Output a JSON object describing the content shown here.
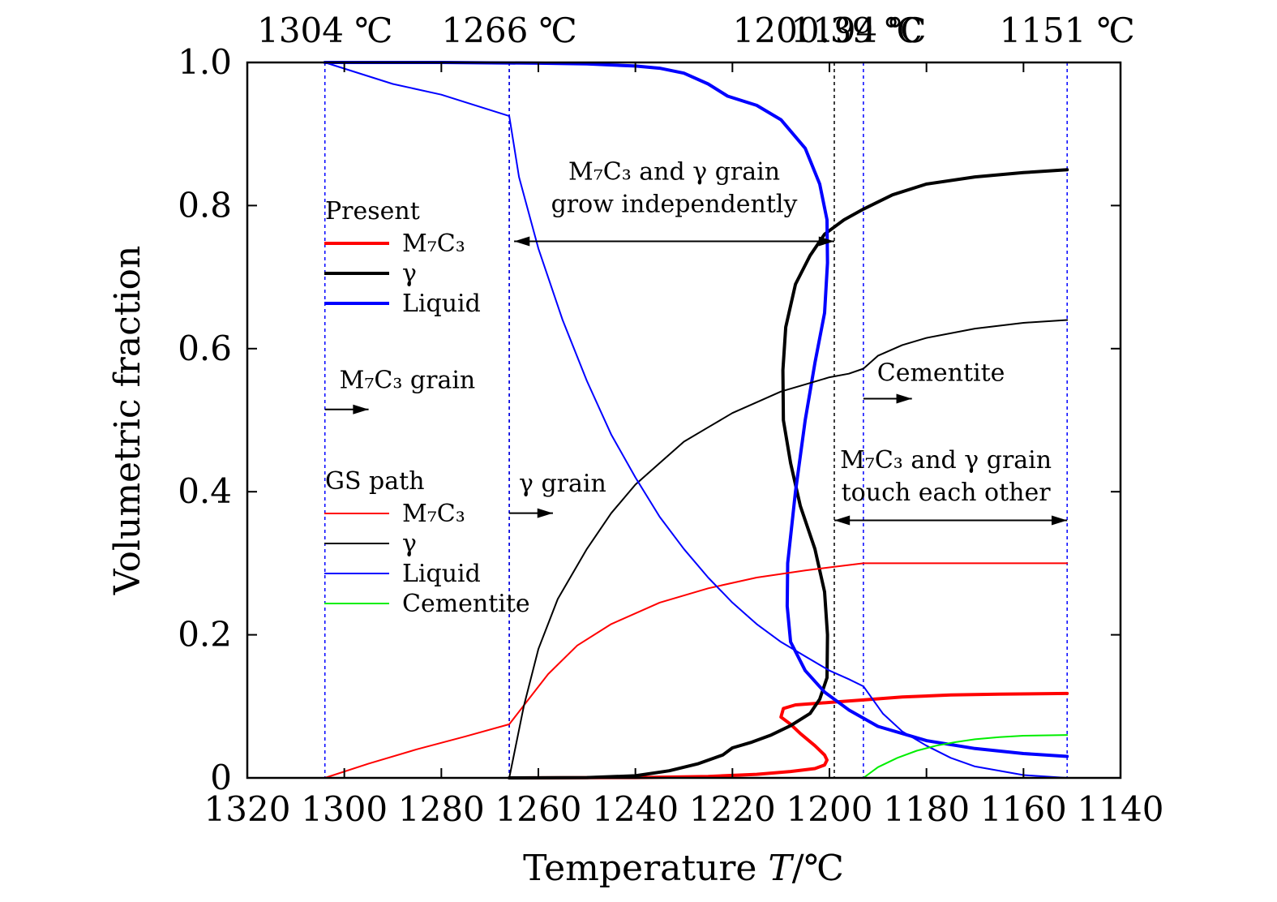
{
  "chart_data": {
    "type": "line",
    "xlabel": "Temperature T/℃",
    "xlabel_parts": {
      "pre": "Temperature ",
      "italic": "T",
      "post": "/℃"
    },
    "ylabel": "Volumetric fraction",
    "xlim": [
      1320,
      1140
    ],
    "ylim": [
      0,
      1.0
    ],
    "x_reversed": true,
    "xticks": [
      1320,
      1300,
      1280,
      1260,
      1240,
      1220,
      1200,
      1180,
      1160,
      1140
    ],
    "xtick_labels": [
      "1320",
      "1300",
      "1280",
      "1260",
      "1240",
      "1220",
      "1200",
      "1180",
      "1160",
      "1140"
    ],
    "yticks": [
      0,
      0.2,
      0.4,
      0.6,
      0.8,
      1.0
    ],
    "ytick_labels": [
      "0",
      "0.2",
      "0.4",
      "0.6",
      "0.8",
      "1.0"
    ],
    "grid": false,
    "colors": {
      "m7c3": "#ff0000",
      "gamma": "#000000",
      "liquid": "#0000ff",
      "cementite": "#00ee00"
    },
    "top_temperatures": [
      {
        "x": 1304,
        "label": "1304 ℃"
      },
      {
        "x": 1266,
        "label": "1266 ℃"
      },
      {
        "x": 1200.39,
        "label": "1200.39 ℃"
      },
      {
        "x": 1194,
        "label": "1194 ℃"
      },
      {
        "x": 1151,
        "label": "1151 ℃"
      }
    ],
    "vertical_lines": [
      {
        "x": 1304,
        "color": "#0000ff"
      },
      {
        "x": 1266,
        "color": "#000000"
      },
      {
        "x": 1266,
        "color": "#0000ff"
      },
      {
        "x": 1199,
        "color": "#000000"
      },
      {
        "x": 1193,
        "color": "#0000ff"
      },
      {
        "x": 1151,
        "color": "#0000ff"
      }
    ],
    "legend_groups": [
      {
        "title": "Present",
        "items": [
          {
            "label": "M₇C₃",
            "color": "#ff0000",
            "width": 4
          },
          {
            "label": "γ",
            "color": "#000000",
            "width": 4
          },
          {
            "label": "Liquid",
            "color": "#0000ff",
            "width": 4
          }
        ]
      },
      {
        "title": "GS path",
        "items": [
          {
            "label": "M₇C₃",
            "color": "#ff0000",
            "width": 2
          },
          {
            "label": "γ",
            "color": "#000000",
            "width": 2
          },
          {
            "label": "Liquid",
            "color": "#0000ff",
            "width": 2
          },
          {
            "label": "Cementite",
            "color": "#00ee00",
            "width": 2
          }
        ]
      }
    ],
    "annotations": [
      {
        "lines": [
          "M₇C₃ and γ grain",
          "grow independently"
        ],
        "x": 1232,
        "y": 0.836,
        "arrow": {
          "type": "double",
          "x1": 1265,
          "x2": 1199,
          "y": 0.75
        }
      },
      {
        "lines": [
          "M₇C₃ grain"
        ],
        "x": 1287,
        "y": 0.545,
        "arrow": {
          "type": "right",
          "x1": 1304,
          "x2": 1295,
          "y": 0.515
        }
      },
      {
        "lines": [
          "γ grain"
        ],
        "x": 1255,
        "y": 0.4,
        "arrow": {
          "type": "right",
          "x1": 1266,
          "x2": 1257,
          "y": 0.37
        }
      },
      {
        "lines": [
          "Cementite"
        ],
        "x": 1177,
        "y": 0.555,
        "arrow": {
          "type": "right",
          "x1": 1193,
          "x2": 1183,
          "y": 0.53
        }
      },
      {
        "lines": [
          "M₇C₃ and γ grain",
          "touch each other"
        ],
        "x": 1176,
        "y": 0.433,
        "arrow": {
          "type": "double",
          "x1": 1199,
          "x2": 1151,
          "y": 0.36
        }
      }
    ],
    "series": [
      {
        "name": "Present M₇C₃",
        "color": "#ff0000",
        "width": 4,
        "x": [
          1266,
          1240,
          1225,
          1215,
          1208,
          1203,
          1201,
          1200.5,
          1201,
          1203,
          1206,
          1208,
          1210,
          1209.5,
          1207,
          1203,
          1199,
          1193,
          1185,
          1175,
          1165,
          1151
        ],
        "y": [
          0,
          0.0005,
          0.002,
          0.005,
          0.009,
          0.013,
          0.018,
          0.025,
          0.032,
          0.045,
          0.062,
          0.075,
          0.085,
          0.097,
          0.102,
          0.104,
          0.106,
          0.109,
          0.113,
          0.116,
          0.117,
          0.118
        ]
      },
      {
        "name": "Present γ",
        "color": "#000000",
        "width": 4,
        "x": [
          1266,
          1250,
          1240,
          1233,
          1227,
          1222,
          1220,
          1216,
          1212,
          1208,
          1204,
          1202,
          1200.5,
          1200.4,
          1201,
          1203,
          1206,
          1208,
          1209.5,
          1209.6,
          1209,
          1207,
          1204,
          1201,
          1197,
          1193,
          1187,
          1180,
          1170,
          1160,
          1151
        ],
        "y": [
          0,
          0.0005,
          0.003,
          0.01,
          0.02,
          0.032,
          0.042,
          0.05,
          0.06,
          0.073,
          0.09,
          0.11,
          0.14,
          0.2,
          0.26,
          0.32,
          0.38,
          0.44,
          0.5,
          0.57,
          0.63,
          0.69,
          0.73,
          0.76,
          0.78,
          0.795,
          0.815,
          0.83,
          0.84,
          0.846,
          0.85
        ]
      },
      {
        "name": "Present Liquid",
        "color": "#0000ff",
        "width": 4,
        "x": [
          1304,
          1280,
          1260,
          1250,
          1240,
          1235,
          1230,
          1225,
          1221,
          1215,
          1210,
          1205,
          1202,
          1200.5,
          1200.4,
          1201,
          1203,
          1205,
          1207,
          1208.6,
          1208.7,
          1208,
          1205,
          1201,
          1196,
          1190,
          1180,
          1170,
          1160,
          1151
        ],
        "y": [
          1.0,
          1.0,
          0.999,
          0.998,
          0.995,
          0.992,
          0.985,
          0.97,
          0.953,
          0.94,
          0.92,
          0.88,
          0.83,
          0.78,
          0.72,
          0.65,
          0.58,
          0.5,
          0.4,
          0.3,
          0.24,
          0.19,
          0.15,
          0.12,
          0.095,
          0.072,
          0.052,
          0.041,
          0.034,
          0.03
        ]
      },
      {
        "name": "GS path M₇C₃",
        "color": "#ff0000",
        "width": 2,
        "x": [
          1304,
          1295,
          1285,
          1275,
          1266,
          1262,
          1258,
          1252,
          1245,
          1235,
          1225,
          1215,
          1205,
          1199,
          1193,
          1180,
          1165,
          1151
        ],
        "y": [
          0,
          0.02,
          0.04,
          0.058,
          0.075,
          0.11,
          0.145,
          0.185,
          0.215,
          0.245,
          0.265,
          0.28,
          0.29,
          0.295,
          0.3,
          0.3,
          0.3,
          0.3
        ]
      },
      {
        "name": "GS path γ",
        "color": "#000000",
        "width": 2,
        "x": [
          1266,
          1263,
          1260,
          1256,
          1250,
          1245,
          1240,
          1235,
          1230,
          1225,
          1220,
          1215,
          1210,
          1205,
          1200,
          1196,
          1193,
          1190,
          1185,
          1180,
          1170,
          1160,
          1151
        ],
        "y": [
          0,
          0.1,
          0.18,
          0.25,
          0.32,
          0.37,
          0.41,
          0.44,
          0.47,
          0.49,
          0.51,
          0.525,
          0.54,
          0.55,
          0.56,
          0.565,
          0.572,
          0.59,
          0.605,
          0.615,
          0.628,
          0.636,
          0.64
        ]
      },
      {
        "name": "GS path Liquid",
        "color": "#0000ff",
        "width": 2,
        "x": [
          1304,
          1290,
          1280,
          1266,
          1264,
          1260,
          1255,
          1250,
          1245,
          1240,
          1235,
          1230,
          1225,
          1220,
          1215,
          1210,
          1205,
          1200,
          1196,
          1193,
          1189,
          1185,
          1180,
          1175,
          1170,
          1160,
          1151
        ],
        "y": [
          1.0,
          0.97,
          0.955,
          0.925,
          0.84,
          0.74,
          0.64,
          0.555,
          0.48,
          0.42,
          0.365,
          0.32,
          0.28,
          0.245,
          0.215,
          0.19,
          0.17,
          0.15,
          0.138,
          0.128,
          0.09,
          0.065,
          0.045,
          0.028,
          0.016,
          0.004,
          0
        ]
      },
      {
        "name": "GS path Cementite",
        "color": "#00ee00",
        "width": 2,
        "x": [
          1193,
          1190,
          1186,
          1182,
          1178,
          1174,
          1170,
          1165,
          1160,
          1151
        ],
        "y": [
          0,
          0.015,
          0.028,
          0.038,
          0.045,
          0.05,
          0.054,
          0.057,
          0.059,
          0.06
        ]
      }
    ]
  }
}
